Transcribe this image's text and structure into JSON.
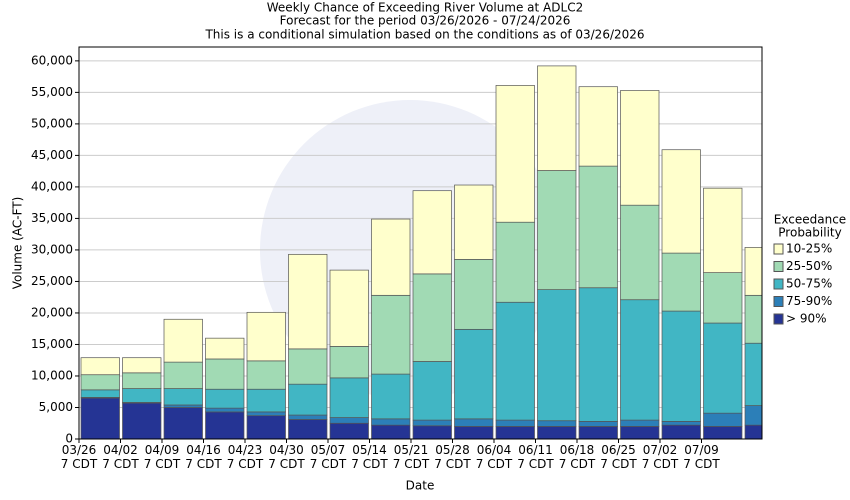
{
  "chart_data": {
    "type": "stacked_bar",
    "title": "Weekly Chance of Exceeding River Volume at ADLC2",
    "subtitles": [
      "Forecast for the period 03/26/2026 - 07/24/2026",
      "This is a conditional simulation based on the conditions as of 03/26/2026"
    ],
    "x_label": "Date",
    "y_label": "Volume (AC-FT)",
    "legend_title": [
      "Exceedance",
      "Probability"
    ],
    "categories": [
      "03/26\n7 CDT",
      "04/02\n7 CDT",
      "04/09\n7 CDT",
      "04/16\n7 CDT",
      "04/23\n7 CDT",
      "04/30\n7 CDT",
      "05/07\n7 CDT",
      "05/14\n7 CDT",
      "05/21\n7 CDT",
      "05/28\n7 CDT",
      "06/04\n7 CDT",
      "06/11\n7 CDT",
      "06/18\n7 CDT",
      "06/25\n7 CDT",
      "07/02\n7 CDT",
      "07/09\n7 CDT",
      null
    ],
    "series": [
      {
        "name": "> 90%",
        "color": "#253494",
        "values": [
          6500,
          5700,
          5000,
          4300,
          3700,
          3100,
          2500,
          2200,
          2100,
          2000,
          2000,
          2000,
          2000,
          2000,
          2200,
          2000,
          2200
        ]
      },
      {
        "name": "75-90%",
        "color": "#2c7fb8",
        "values": [
          100,
          100,
          400,
          600,
          600,
          700,
          900,
          1000,
          900,
          1200,
          1000,
          900,
          800,
          1000,
          600,
          2100,
          3100
        ]
      },
      {
        "name": "50-75%",
        "color": "#41b6c4",
        "values": [
          1200,
          2200,
          2600,
          3000,
          3600,
          4900,
          6300,
          7100,
          9300,
          14200,
          18700,
          20800,
          21200,
          19100,
          17500,
          14300,
          9900
        ]
      },
      {
        "name": "25-50%",
        "color": "#a1dab4",
        "values": [
          2400,
          2500,
          4200,
          4800,
          4500,
          5600,
          5000,
          12500,
          13900,
          11100,
          12700,
          18900,
          19300,
          15000,
          9200,
          8000,
          7600
        ]
      },
      {
        "name": "10-25%",
        "color": "#ffffcc",
        "values": [
          2700,
          2400,
          6800,
          3300,
          7700,
          15000,
          12100,
          12100,
          13200,
          11800,
          21700,
          16600,
          12600,
          18200,
          16400,
          13400,
          7600
        ]
      }
    ],
    "ylim": [
      0,
      62200
    ],
    "yticks": [
      0,
      {
        "value": 5000,
        "label": "5,000"
      },
      {
        "value": 10000,
        "label": "10,000"
      },
      {
        "value": 15000,
        "label": "15,000"
      },
      {
        "value": 20000,
        "label": "20,000"
      },
      {
        "value": 25000,
        "label": "25,000"
      },
      {
        "value": 30000,
        "label": "30,000"
      },
      {
        "value": 35000,
        "label": "35,000"
      },
      {
        "value": 40000,
        "label": "40,000"
      },
      {
        "value": 45000,
        "label": "45,000"
      },
      {
        "value": 50000,
        "label": "50,000"
      },
      {
        "value": 55000,
        "label": "55,000"
      },
      {
        "value": 60000,
        "label": "60,000"
      }
    ],
    "grid": true
  }
}
